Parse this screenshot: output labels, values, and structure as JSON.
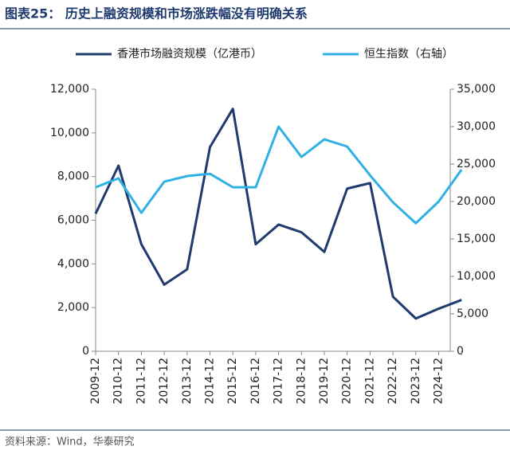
{
  "title": "图表25：  历史上融资规模和市场涨跌幅没有明确关系",
  "source": "资料来源：Wind，华泰研究",
  "chart_data": {
    "type": "line",
    "categories": [
      "2009-12",
      "2010-12",
      "2011-12",
      "2012-12",
      "2013-12",
      "2014-12",
      "2015-12",
      "2016-12",
      "2017-12",
      "2018-12",
      "2019-12",
      "2020-12",
      "2021-12",
      "2022-12",
      "2023-12",
      "2024-12",
      null
    ],
    "series": [
      {
        "name": "香港市场融资规模（亿港币）",
        "color": "#1f3a6e",
        "values": [
          6300,
          8500,
          4900,
          3050,
          3750,
          9350,
          11100,
          4900,
          5800,
          5450,
          4550,
          7450,
          7700,
          2500,
          1500,
          1950,
          2350
        ]
      },
      {
        "name": "恒生指数（右轴）",
        "color": "#2fb1e3",
        "axis": "y2",
        "values": [
          21900,
          23100,
          18500,
          22650,
          23400,
          23700,
          21900,
          21900,
          30000,
          25950,
          28300,
          27340,
          23500,
          19900,
          17100,
          20000,
          24250
        ]
      }
    ],
    "ylim": [
      0,
      12000
    ],
    "yticks": [
      0,
      {
        "value": 2000,
        "label": "2,000"
      },
      {
        "value": 4000,
        "label": "4,000"
      },
      {
        "value": 6000,
        "label": "6,000"
      },
      {
        "value": 8000,
        "label": "8,000"
      },
      {
        "value": 10000,
        "label": "10,000"
      },
      {
        "value": 12000,
        "label": "12,000"
      }
    ],
    "y2lim": [
      0,
      35000
    ],
    "y2ticks": [
      0,
      {
        "value": 5000,
        "label": "5,000"
      },
      {
        "value": 10000,
        "label": "10,000"
      },
      {
        "value": 15000,
        "label": "15,000"
      },
      {
        "value": 20000,
        "label": "20,000"
      },
      {
        "value": 25000,
        "label": "25,000"
      },
      {
        "value": 30000,
        "label": "30,000"
      },
      {
        "value": 35000,
        "label": "35,000"
      }
    ],
    "legend": "top"
  }
}
